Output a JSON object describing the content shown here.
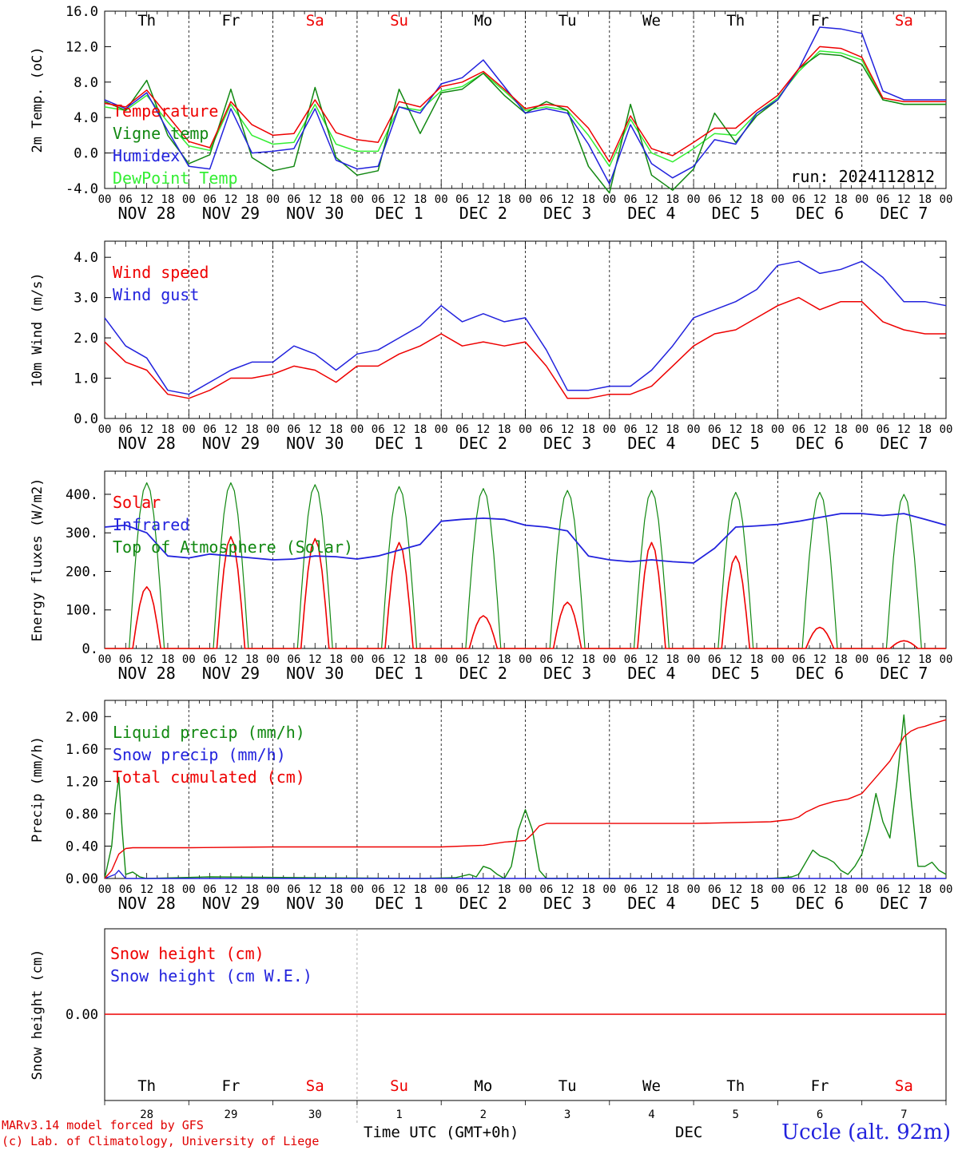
{
  "meta": {
    "run_label": "run: 2024112812",
    "credit_line1": "MARv3.14 model forced by GFS",
    "credit_line2": "(c) Lab. of Climatology, University of Liege",
    "time_axis_label": "Time UTC (GMT+0h)",
    "month_label": "DEC",
    "station_label": "Uccle (alt. 92m)"
  },
  "colors": {
    "red": "#ee0000",
    "green": "#118811",
    "blue": "#2222dd",
    "lightgreen": "#33ee33",
    "weekend": "#ee0000",
    "weekday": "#000000"
  },
  "days": [
    {
      "abbr": "Th",
      "weekend": false,
      "date": "NOV 28",
      "day_num": "28"
    },
    {
      "abbr": "Fr",
      "weekend": false,
      "date": "NOV 29",
      "day_num": "29"
    },
    {
      "abbr": "Sa",
      "weekend": true,
      "date": "NOV 30",
      "day_num": "30"
    },
    {
      "abbr": "Su",
      "weekend": true,
      "date": "DEC  1",
      "day_num": "1"
    },
    {
      "abbr": "Mo",
      "weekend": false,
      "date": "DEC  2",
      "day_num": "2"
    },
    {
      "abbr": "Tu",
      "weekend": false,
      "date": "DEC  3",
      "day_num": "3"
    },
    {
      "abbr": "We",
      "weekend": false,
      "date": "DEC  4",
      "day_num": "4"
    },
    {
      "abbr": "Th",
      "weekend": false,
      "date": "DEC  5",
      "day_num": "5"
    },
    {
      "abbr": "Fr",
      "weekend": false,
      "date": "DEC  6",
      "day_num": "6"
    },
    {
      "abbr": "Sa",
      "weekend": true,
      "date": "DEC  7",
      "day_num": "7"
    }
  ],
  "hour_ticks": [
    "00",
    "06",
    "12",
    "18"
  ],
  "chart_data": [
    {
      "type": "line",
      "ylabel": "2m Temp. (oC)",
      "ylim": [
        -4,
        16
      ],
      "yticks": [
        "-4.0",
        "0.0",
        "4.0",
        "8.0",
        "12.0",
        "16.0"
      ],
      "ytick_values": [
        -4,
        0,
        4,
        8,
        12,
        16
      ],
      "zero_line": true,
      "legend": [
        "Temperature",
        "Vigne temp",
        "Humidex",
        "DewPoint Temp"
      ],
      "x_hours": [
        0,
        6,
        12,
        18,
        24,
        30,
        36,
        42,
        48,
        54,
        60,
        66,
        72,
        78,
        84,
        90,
        96,
        102,
        108,
        114,
        120,
        126,
        132,
        138,
        144,
        150,
        156,
        162,
        168,
        174,
        180,
        186,
        192,
        198,
        204,
        210,
        216,
        222,
        228,
        234,
        240
      ],
      "series": [
        {
          "name": "Temperature",
          "color": "red",
          "values": [
            5.6,
            5.2,
            7.1,
            4.2,
            1.3,
            0.6,
            5.8,
            3.2,
            2.0,
            2.2,
            6.0,
            2.3,
            1.5,
            1.2,
            5.8,
            5.2,
            7.5,
            8.0,
            9.2,
            7.2,
            5.0,
            5.5,
            5.2,
            2.8,
            -1.0,
            4.2,
            0.5,
            -0.3,
            1.2,
            2.8,
            2.8,
            4.8,
            6.5,
            9.5,
            12.0,
            11.8,
            10.8,
            6.2,
            5.8,
            5.8,
            5.8
          ]
        },
        {
          "name": "Vigne temp",
          "color": "green",
          "values": [
            5.8,
            4.8,
            8.2,
            2.0,
            -1.2,
            -0.2,
            7.2,
            -0.5,
            -2.0,
            -1.5,
            7.4,
            -0.5,
            -2.5,
            -2.0,
            7.2,
            2.2,
            6.8,
            7.2,
            9.0,
            6.5,
            4.5,
            5.8,
            4.8,
            -1.5,
            -4.5,
            5.5,
            -2.5,
            -4.2,
            -1.8,
            4.5,
            1.2,
            4.2,
            6.0,
            9.5,
            11.2,
            11.0,
            10.0,
            6.0,
            5.5,
            5.5,
            5.5
          ]
        },
        {
          "name": "Humidex",
          "color": "blue",
          "values": [
            6.0,
            5.0,
            6.8,
            2.5,
            -1.5,
            -1.8,
            5.0,
            0.0,
            0.2,
            0.5,
            5.0,
            -0.8,
            -1.8,
            -1.5,
            5.2,
            4.5,
            7.8,
            8.5,
            10.5,
            7.5,
            4.5,
            5.0,
            4.5,
            1.0,
            -3.5,
            3.2,
            -1.2,
            -2.8,
            -1.5,
            1.5,
            1.0,
            4.5,
            6.0,
            9.5,
            14.2,
            14.0,
            13.5,
            7.0,
            6.0,
            6.0,
            6.0
          ]
        },
        {
          "name": "DewPoint Temp",
          "color": "lightgreen",
          "values": [
            5.2,
            4.8,
            6.5,
            3.5,
            0.8,
            0.3,
            5.5,
            2.0,
            1.0,
            1.2,
            5.5,
            1.0,
            0.2,
            0.2,
            5.2,
            4.8,
            7.0,
            7.5,
            9.0,
            7.0,
            4.8,
            5.2,
            4.8,
            2.0,
            -1.5,
            3.8,
            0.0,
            -1.0,
            0.5,
            2.2,
            2.0,
            4.5,
            6.2,
            9.2,
            11.5,
            11.3,
            10.5,
            6.0,
            5.5,
            5.5,
            5.5
          ]
        }
      ]
    },
    {
      "type": "line",
      "ylabel": "10m Wind (m/s)",
      "ylim": [
        0,
        4.4
      ],
      "yticks": [
        "0.0",
        "1.0",
        "2.0",
        "3.0",
        "4.0"
      ],
      "ytick_values": [
        0,
        1,
        2,
        3,
        4
      ],
      "legend": [
        "Wind speed",
        "Wind gust"
      ],
      "x_hours": [
        0,
        6,
        12,
        18,
        24,
        30,
        36,
        42,
        48,
        54,
        60,
        66,
        72,
        78,
        84,
        90,
        96,
        102,
        108,
        114,
        120,
        126,
        132,
        138,
        144,
        150,
        156,
        162,
        168,
        174,
        180,
        186,
        192,
        198,
        204,
        210,
        216,
        222,
        228,
        234,
        240
      ],
      "series": [
        {
          "name": "Wind speed",
          "color": "red",
          "values": [
            1.9,
            1.4,
            1.2,
            0.6,
            0.5,
            0.7,
            1.0,
            1.0,
            1.1,
            1.3,
            1.2,
            0.9,
            1.3,
            1.3,
            1.6,
            1.8,
            2.1,
            1.8,
            1.9,
            1.8,
            1.9,
            1.3,
            0.5,
            0.5,
            0.6,
            0.6,
            0.8,
            1.3,
            1.8,
            2.1,
            2.2,
            2.5,
            2.8,
            3.0,
            2.7,
            2.9,
            2.9,
            2.4,
            2.2,
            2.1,
            2.1
          ]
        },
        {
          "name": "Wind gust",
          "color": "blue",
          "values": [
            2.5,
            1.8,
            1.5,
            0.7,
            0.6,
            0.9,
            1.2,
            1.4,
            1.4,
            1.8,
            1.6,
            1.2,
            1.6,
            1.7,
            2.0,
            2.3,
            2.8,
            2.4,
            2.6,
            2.4,
            2.5,
            1.7,
            0.7,
            0.7,
            0.8,
            0.8,
            1.2,
            1.8,
            2.5,
            2.7,
            2.9,
            3.2,
            3.8,
            3.9,
            3.6,
            3.7,
            3.9,
            3.5,
            2.9,
            2.9,
            2.8
          ]
        }
      ]
    },
    {
      "type": "line",
      "ylabel": "Energy fluxes (W/m2)",
      "ylim": [
        0,
        460
      ],
      "yticks": [
        "0.",
        "100.",
        "200.",
        "300.",
        "400."
      ],
      "ytick_values": [
        0,
        100,
        200,
        300,
        400
      ],
      "legend": [
        "Solar",
        "Infrared",
        "Top of Atmosphere (Solar)"
      ],
      "peaks": {
        "solar": [
          160,
          290,
          285,
          275,
          85,
          120,
          275,
          240,
          55,
          20
        ],
        "toa": [
          430,
          430,
          425,
          420,
          415,
          410,
          410,
          405,
          405,
          400
        ]
      },
      "infrared": {
        "x_hours": [
          0,
          6,
          12,
          18,
          24,
          30,
          36,
          42,
          48,
          54,
          60,
          66,
          72,
          78,
          84,
          90,
          96,
          102,
          108,
          114,
          120,
          126,
          132,
          138,
          144,
          150,
          156,
          162,
          168,
          174,
          180,
          186,
          192,
          198,
          204,
          210,
          216,
          222,
          228,
          234,
          240
        ],
        "values": [
          315,
          320,
          300,
          240,
          235,
          245,
          240,
          235,
          230,
          232,
          240,
          238,
          232,
          240,
          255,
          270,
          330,
          335,
          338,
          335,
          320,
          315,
          305,
          240,
          230,
          225,
          230,
          225,
          222,
          260,
          315,
          318,
          322,
          330,
          340,
          350,
          350,
          345,
          350,
          335,
          320
        ]
      }
    },
    {
      "type": "line",
      "ylabel": "Precip (mm/h)",
      "ylim": [
        0,
        2.2
      ],
      "yticks": [
        "0.00",
        "0.40",
        "0.80",
        "1.20",
        "1.60",
        "2.00"
      ],
      "ytick_values": [
        0,
        0.4,
        0.8,
        1.2,
        1.6,
        2.0
      ],
      "legend": [
        "Liquid precip (mm/h)",
        "Snow precip (mm/h)",
        "Total cumulated (cm)"
      ],
      "series": [
        {
          "name": "Liquid precip (mm/h)",
          "color": "green",
          "x_hours": [
            0,
            2,
            3,
            4,
            5,
            6,
            8,
            10,
            12,
            30,
            90,
            100,
            102,
            104,
            106,
            108,
            110,
            112,
            114,
            116,
            118,
            120,
            122,
            124,
            126,
            128,
            130,
            132,
            134,
            190,
            196,
            198,
            200,
            202,
            204,
            206,
            208,
            210,
            212,
            214,
            216,
            218,
            220,
            222,
            224,
            226,
            228,
            230,
            232,
            234,
            236,
            238,
            240
          ],
          "values": [
            0,
            0.4,
            0.9,
            1.25,
            0.6,
            0.05,
            0.08,
            0.02,
            0,
            0.02,
            0,
            0.01,
            0.03,
            0.05,
            0.02,
            0.15,
            0.12,
            0.05,
            0,
            0.15,
            0.6,
            0.85,
            0.6,
            0.1,
            0,
            0,
            0,
            0,
            0,
            0,
            0.02,
            0.05,
            0.2,
            0.35,
            0.28,
            0.25,
            0.2,
            0.1,
            0.05,
            0.15,
            0.3,
            0.6,
            1.05,
            0.7,
            0.5,
            1.2,
            2.02,
            1.0,
            0.15,
            0.15,
            0.2,
            0.1,
            0.05
          ]
        },
        {
          "name": "Snow precip (mm/h)",
          "color": "blue",
          "x_hours": [
            0,
            3,
            4,
            5,
            6,
            240
          ],
          "values": [
            0,
            0.05,
            0.1,
            0.05,
            0,
            0
          ]
        },
        {
          "name": "Total cumulated (cm)",
          "color": "red",
          "x_hours": [
            0,
            2,
            4,
            6,
            8,
            10,
            12,
            24,
            48,
            72,
            96,
            108,
            114,
            120,
            122,
            124,
            126,
            128,
            140,
            168,
            190,
            196,
            198,
            200,
            204,
            208,
            212,
            216,
            220,
            224,
            226,
            228,
            230,
            232,
            234,
            236,
            240
          ],
          "values": [
            0,
            0.1,
            0.3,
            0.37,
            0.38,
            0.38,
            0.38,
            0.38,
            0.39,
            0.39,
            0.39,
            0.41,
            0.45,
            0.47,
            0.55,
            0.65,
            0.68,
            0.68,
            0.68,
            0.68,
            0.7,
            0.73,
            0.76,
            0.82,
            0.9,
            0.95,
            0.98,
            1.05,
            1.25,
            1.45,
            1.6,
            1.75,
            1.82,
            1.86,
            1.88,
            1.91,
            1.96
          ]
        }
      ]
    },
    {
      "type": "line",
      "ylabel": "Snow height (cm)",
      "yticks": [
        "0.00"
      ],
      "ytick_values": [
        0
      ],
      "legend": [
        "Snow height (cm)",
        "Snow height (cm W.E.)"
      ],
      "series": [
        {
          "name": "Snow height (cm)",
          "color": "red",
          "x_hours": [
            0,
            240
          ],
          "values": [
            0,
            0
          ]
        }
      ]
    }
  ]
}
